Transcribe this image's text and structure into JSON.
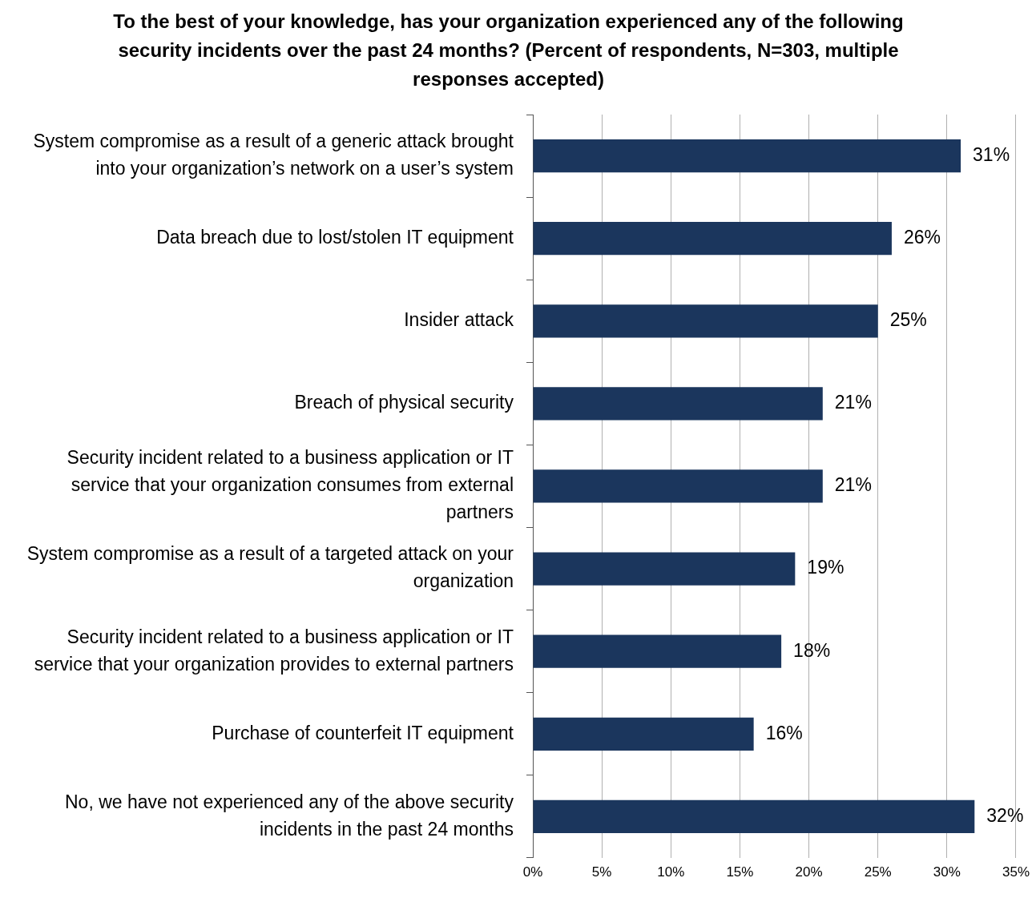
{
  "chart_data": {
    "type": "bar",
    "orientation": "horizontal",
    "title": "To the best of your knowledge, has your organization experienced any of the following security incidents over the past 24 months? (Percent of respondents, N=303, multiple responses accepted)",
    "categories": [
      "System compromise as a result of a generic attack brought into your organization’s network on a user’s system",
      "Data breach due to lost/stolen IT equipment",
      "Insider attack",
      "Breach of physical security",
      "Security incident related to a business application or IT service that your organization consumes from external partners",
      "System compromise as a result of a targeted attack on your organization",
      "Security incident related to a business application or IT service that your organization provides to external partners",
      "Purchase of counterfeit IT equipment",
      "No, we have not experienced any of the above security incidents in the past 24 months"
    ],
    "values": [
      31,
      26,
      25,
      21,
      21,
      19,
      18,
      16,
      32
    ],
    "value_labels": [
      "31%",
      "26%",
      "25%",
      "21%",
      "21%",
      "19%",
      "18%",
      "16%",
      "32%"
    ],
    "color": "#1b365d",
    "xlim": [
      0,
      35
    ],
    "xticks": [
      {
        "value": 0,
        "label": "0%"
      },
      {
        "value": 5,
        "label": "5%"
      },
      {
        "value": 10,
        "label": "10%"
      },
      {
        "value": 15,
        "label": "15%"
      },
      {
        "value": 20,
        "label": "20%"
      },
      {
        "value": 25,
        "label": "25%"
      },
      {
        "value": 30,
        "label": "30%"
      },
      {
        "value": 35,
        "label": "35%"
      }
    ],
    "grid": "x",
    "legend": false
  }
}
